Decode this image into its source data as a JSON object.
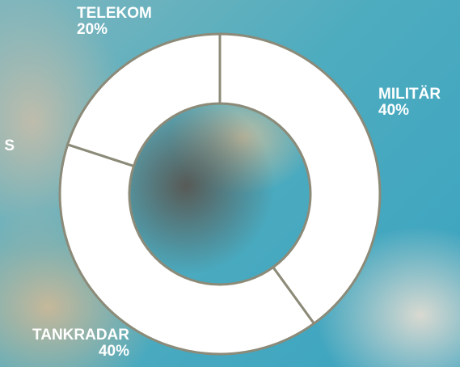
{
  "chart_data": {
    "type": "donut",
    "categories": [
      "MILITÄR",
      "TANKRADAR",
      "S",
      "TELEKOM"
    ],
    "values": [
      40,
      40,
      null,
      20
    ],
    "value_labels": [
      "40%",
      "40%",
      null,
      "20%"
    ],
    "color": "#ffffff"
  }
}
